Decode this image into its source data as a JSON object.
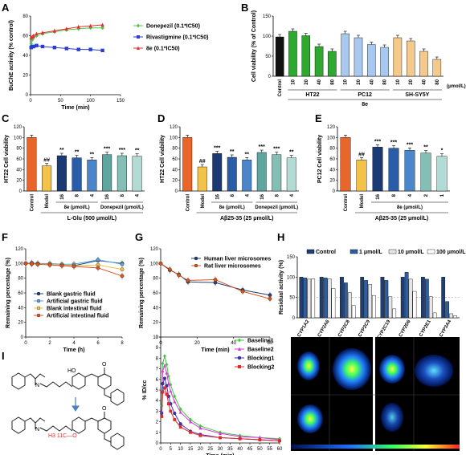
{
  "panels": {
    "A": {
      "label": "A"
    },
    "B": {
      "label": "B"
    },
    "C": {
      "label": "C"
    },
    "D": {
      "label": "D"
    },
    "E": {
      "label": "E"
    },
    "F": {
      "label": "F"
    },
    "G": {
      "label": "G"
    },
    "H": {
      "label": "H"
    },
    "I": {
      "label": "I"
    }
  },
  "chart_data": [
    {
      "id": "A",
      "type": "line",
      "xlabel": "Time (min)",
      "ylabel": "BuChE activity (% control)",
      "xlim": [
        0,
        150
      ],
      "ylim": [
        0,
        80
      ],
      "xticks": [
        "0",
        "50",
        "100",
        "150"
      ],
      "yticks": [
        "0",
        "20",
        "40",
        "60",
        "80"
      ],
      "legend_position": "right",
      "series": [
        {
          "name": "Donepezil (0.1*IC50)",
          "color": "#4cc94c",
          "marker": "diamond",
          "x": [
            1,
            3,
            5,
            10,
            20,
            40,
            60,
            80,
            100,
            120
          ],
          "y": [
            52,
            56,
            58,
            60,
            62,
            64,
            66,
            67,
            68,
            68
          ]
        },
        {
          "name": "Rivastigmine (0.1*IC50)",
          "color": "#2a3bd6",
          "marker": "square",
          "x": [
            1,
            3,
            5,
            10,
            20,
            40,
            60,
            80,
            100,
            120
          ],
          "y": [
            48,
            49,
            49,
            50,
            49,
            48,
            47,
            46,
            46,
            45
          ]
        },
        {
          "name": "8e (0.1*IC50)",
          "color": "#e0302f",
          "marker": "triangle",
          "x": [
            1,
            3,
            5,
            10,
            20,
            40,
            60,
            80,
            100,
            120
          ],
          "y": [
            58,
            59,
            60,
            62,
            63,
            65,
            67,
            69,
            70,
            71
          ]
        }
      ]
    },
    {
      "id": "B",
      "type": "bar",
      "ylabel": "Cell viability (% of Control)",
      "ylim": [
        0,
        150
      ],
      "yticks": [
        "0",
        "50",
        "100",
        "150"
      ],
      "categories": [
        "Control",
        "10",
        "20",
        "40",
        "80",
        "10",
        "20",
        "40",
        "80",
        "10",
        "20",
        "40",
        "80"
      ],
      "values": [
        98,
        112,
        101,
        74,
        62,
        106,
        96,
        79,
        72,
        96,
        88,
        62,
        42
      ],
      "colors": [
        "#111111",
        "#2ea82e",
        "#2ea82e",
        "#2ea82e",
        "#2ea82e",
        "#a8c8f0",
        "#a8c8f0",
        "#a8c8f0",
        "#a8c8f0",
        "#f5c98a",
        "#f5c98a",
        "#f5c98a",
        "#f5c98a"
      ],
      "unit_label": "(μmol/L)",
      "groups": [
        "HT22",
        "PC12",
        "SH-SY5Y"
      ],
      "compound": "8e"
    },
    {
      "id": "C",
      "type": "bar",
      "ylabel": "HT22 Cell viability",
      "ylim": [
        0,
        120
      ],
      "yticks": [
        "0",
        "20",
        "40",
        "60",
        "80",
        "100",
        "120"
      ],
      "categories": [
        "Control",
        "Model",
        "16",
        "8",
        "4",
        "16",
        "8",
        "4"
      ],
      "values": [
        100,
        47,
        66,
        62,
        58,
        68,
        66,
        65
      ],
      "colors": [
        "#e8662a",
        "#f2c24a",
        "#1b3a73",
        "#2a5da8",
        "#4a86c9",
        "#5fa6a0",
        "#84bfb6",
        "#b3dbd5"
      ],
      "annotations": [
        "",
        "##",
        "**",
        "**",
        "**",
        "***",
        "***",
        "**"
      ],
      "group_labels": [
        "8e (μmol/L)",
        "Donepezil (μmol/L)"
      ],
      "condition": "L-Glu (500 μmol/L)"
    },
    {
      "id": "D",
      "type": "bar",
      "ylabel": "HT22 Cell viability",
      "ylim": [
        0,
        120
      ],
      "yticks": [
        "0",
        "20",
        "40",
        "60",
        "80",
        "100",
        "120"
      ],
      "categories": [
        "Control",
        "Model",
        "16",
        "8",
        "4",
        "16",
        "8",
        "4"
      ],
      "values": [
        100,
        45,
        70,
        63,
        58,
        72,
        68,
        62
      ],
      "colors": [
        "#e8662a",
        "#f2c24a",
        "#1b3a73",
        "#2a5da8",
        "#4a86c9",
        "#5fa6a0",
        "#84bfb6",
        "#b3dbd5"
      ],
      "annotations": [
        "",
        "##",
        "***",
        "**",
        "**",
        "***",
        "***",
        "**"
      ],
      "group_labels": [
        "8e (μmol/L)",
        "Donepezil (μmol/L)"
      ],
      "condition": "Aβ25-35 (25 μmol/L)"
    },
    {
      "id": "E",
      "type": "bar",
      "ylabel": "PC12 Cell viability",
      "ylim": [
        0,
        120
      ],
      "yticks": [
        "0",
        "20",
        "40",
        "60",
        "80",
        "100",
        "120"
      ],
      "categories": [
        "Control",
        "Model",
        "16",
        "8",
        "4",
        "2",
        "1"
      ],
      "values": [
        100,
        58,
        82,
        80,
        76,
        71,
        65
      ],
      "colors": [
        "#e8662a",
        "#f2c24a",
        "#1b3a73",
        "#2a5da8",
        "#4a86c9",
        "#84bfb6",
        "#b3dbd5"
      ],
      "annotations": [
        "",
        "##",
        "***",
        "***",
        "***",
        "**",
        "*"
      ],
      "group_labels": [
        "8e (μmol/L)"
      ],
      "condition": "Aβ25-35 (25 μmol/L)"
    },
    {
      "id": "F",
      "type": "line",
      "xlabel": "Time (h)",
      "ylabel": "Remaining percentage (%)",
      "xlim": [
        0,
        8
      ],
      "ylim": [
        0,
        120
      ],
      "xticks": [
        "0",
        "2",
        "4",
        "6",
        "8"
      ],
      "yticks": [
        "0",
        "20",
        "40",
        "60",
        "80",
        "100",
        "120"
      ],
      "legend_position": "bottom-left",
      "series": [
        {
          "name": "Blank gastric fluid",
          "color": "#1f3f73",
          "x": [
            0,
            0.5,
            1,
            2,
            3,
            4,
            6,
            8
          ],
          "y": [
            100,
            100,
            100,
            99,
            98,
            97,
            104,
            100
          ]
        },
        {
          "name": "Artificial gastric fluid",
          "color": "#5aa0d8",
          "x": [
            0,
            0.5,
            1,
            2,
            3,
            4,
            6,
            8
          ],
          "y": [
            100,
            101,
            100,
            100,
            99,
            99,
            105,
            99
          ]
        },
        {
          "name": "Blank intestinal fluid",
          "color": "#f2c24a",
          "x": [
            0,
            0.5,
            1,
            2,
            3,
            4,
            6,
            8
          ],
          "y": [
            100,
            99,
            99,
            99,
            98,
            97,
            98,
            92
          ]
        },
        {
          "name": "Artificial intestinal fluid",
          "color": "#d9541e",
          "x": [
            0,
            0.5,
            1,
            2,
            3,
            4,
            6,
            8
          ],
          "y": [
            100,
            100,
            99,
            98,
            97,
            96,
            94,
            83
          ]
        }
      ]
    },
    {
      "id": "G",
      "type": "line",
      "xlabel": "Time (min)",
      "ylabel": "Remaining percentage (%)",
      "xlim": [
        0,
        60
      ],
      "ylim": [
        0,
        120
      ],
      "xticks": [
        "0",
        "20",
        "40",
        "60"
      ],
      "yticks": [
        "0",
        "20",
        "40",
        "60",
        "80",
        "100",
        "120"
      ],
      "legend_position": "top-right",
      "series": [
        {
          "name": "Human liver microsomes",
          "color": "#1f3f73",
          "x": [
            0,
            5,
            10,
            15,
            30,
            45,
            60
          ],
          "y": [
            100,
            91,
            85,
            75,
            74,
            64,
            57
          ]
        },
        {
          "name": "Rat liver microsomes",
          "color": "#d9541e",
          "x": [
            0,
            5,
            10,
            15,
            30,
            45,
            60
          ],
          "y": [
            100,
            92,
            84,
            77,
            78,
            62,
            52
          ]
        }
      ]
    },
    {
      "id": "H",
      "type": "bar",
      "ylabel": "Residual activity (%)",
      "ylim": [
        0,
        150
      ],
      "yticks": [
        "0",
        "50",
        "100",
        "150"
      ],
      "categories": [
        "CYP1A2",
        "CYP2A6",
        "CYP2C8",
        "CYP2C9",
        "CYP2C19",
        "CYP2D6",
        "CYP2E1",
        "CYP3A4"
      ],
      "legend_position": "top",
      "series": [
        {
          "name": "Control",
          "color": "#1f3f73",
          "values": [
            100,
            100,
            100,
            100,
            100,
            100,
            100,
            100
          ]
        },
        {
          "name": "1 μmol/L",
          "color": "#2f5ea0",
          "values": [
            98,
            98,
            86,
            92,
            92,
            112,
            95,
            40
          ]
        },
        {
          "name": "10 μmol/L",
          "color": "#e6e6e6",
          "values": [
            95,
            96,
            62,
            82,
            52,
            95,
            52,
            10
          ]
        },
        {
          "name": "100 μmol/L",
          "color": "#ffffff",
          "values": [
            96,
            72,
            30,
            55,
            22,
            65,
            12,
            5
          ]
        }
      ]
    },
    {
      "id": "I",
      "type": "line",
      "xlabel": "Time (min)",
      "ylabel": "% ID/cc",
      "xlim": [
        0,
        60
      ],
      "ylim": [
        0,
        10
      ],
      "xticks": [
        "0",
        "5",
        "10",
        "15",
        "20",
        "25",
        "30",
        "35",
        "40",
        "45",
        "50",
        "55",
        "60"
      ],
      "yticks": [
        "0",
        "1",
        "2",
        "3",
        "4",
        "5",
        "6",
        "7",
        "8",
        "9",
        "10"
      ],
      "legend_position": "top-right",
      "series": [
        {
          "name": "Baseline1",
          "color": "#43c443",
          "marker": "diamond",
          "x": [
            0.5,
            1,
            2,
            3,
            4,
            5,
            7,
            10,
            15,
            20,
            30,
            40,
            50,
            60
          ],
          "y": [
            3.5,
            7.5,
            8.2,
            7.4,
            6.3,
            5.5,
            4.4,
            3.2,
            2.2,
            1.6,
            1.0,
            0.7,
            0.5,
            0.4
          ]
        },
        {
          "name": "Baseline2",
          "color": "#d43bd4",
          "marker": "triangle",
          "x": [
            0.5,
            1,
            2,
            3,
            4,
            5,
            7,
            10,
            15,
            20,
            30,
            40,
            50,
            60
          ],
          "y": [
            3.0,
            6.8,
            7.3,
            6.6,
            5.6,
            4.9,
            3.9,
            2.9,
            2.0,
            1.4,
            0.9,
            0.6,
            0.5,
            0.3
          ]
        },
        {
          "name": "Blocking1",
          "color": "#3a32c8",
          "marker": "circle",
          "x": [
            0.5,
            1,
            2,
            3,
            4,
            5,
            7,
            10,
            15,
            20,
            30,
            40,
            50,
            60
          ],
          "y": [
            2.8,
            5.6,
            6.1,
            5.4,
            4.4,
            3.7,
            2.8,
            1.8,
            1.1,
            0.8,
            0.5,
            0.4,
            0.3,
            0.2
          ]
        },
        {
          "name": "Blocking2",
          "color": "#e02a2a",
          "marker": "square",
          "x": [
            0.5,
            1,
            2,
            3,
            4,
            5,
            7,
            10,
            15,
            20,
            30,
            40,
            50,
            60
          ],
          "y": [
            2.5,
            4.8,
            5.2,
            4.6,
            3.7,
            3.0,
            2.2,
            1.5,
            1.0,
            0.7,
            0.5,
            0.4,
            0.3,
            0.2
          ]
        }
      ]
    }
  ],
  "structures": {
    "top_fragment": "HO",
    "bottom_fragment": "H3 11C—O",
    "carbonyl": "O",
    "nitrogen": "N"
  }
}
